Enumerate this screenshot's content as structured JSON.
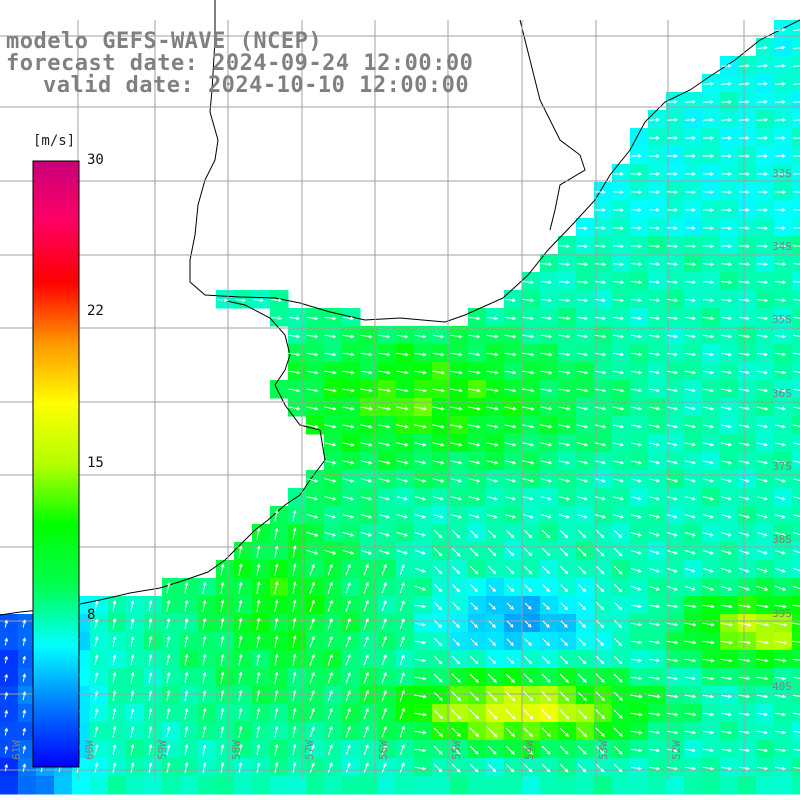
{
  "title": {
    "model": "modelo GEFS-WAVE (NCEP)",
    "forecast": "forecast date: 2024-09-24 12:00:00",
    "valid": "valid date: 2024-10-10 12:00:00"
  },
  "colorbar": {
    "unit": "[m/s]",
    "min": 0,
    "max": 30,
    "ticks": [
      "30",
      "22",
      "15",
      "8"
    ],
    "gradient": [
      "#0000ff",
      "#0078ff",
      "#00ffff",
      "#00ff50",
      "#00ff00",
      "#b4ff00",
      "#ffff00",
      "#ff9600",
      "#ff0000",
      "#ff0064",
      "#c8007a"
    ]
  },
  "grid": {
    "lat_labels": [
      "33S",
      "34S",
      "35S",
      "36S",
      "37S",
      "38S",
      "39S",
      "40S"
    ],
    "lon_labels": [
      "61W",
      "60W",
      "59W",
      "58W",
      "57W",
      "56W",
      "55W",
      "54W",
      "53W",
      "52W"
    ],
    "line_color": "#a0a0a0"
  },
  "colors": {
    "coast": "#000000",
    "arrow": "#ffffff",
    "label": "#808080"
  },
  "field": {
    "description_levels": "wind speed shaded, direction arrows",
    "cell": 18
  }
}
